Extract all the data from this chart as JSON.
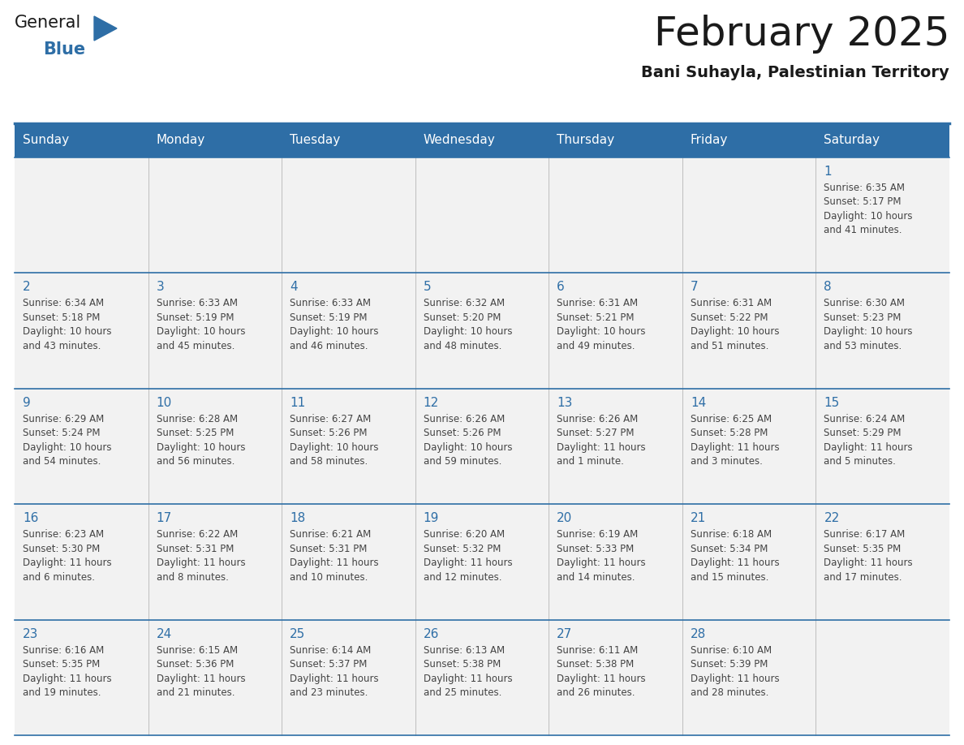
{
  "title": "February 2025",
  "subtitle": "Bani Suhayla, Palestinian Territory",
  "days_of_week": [
    "Sunday",
    "Monday",
    "Tuesday",
    "Wednesday",
    "Thursday",
    "Friday",
    "Saturday"
  ],
  "header_bg": "#2E6EA6",
  "header_text_color": "#FFFFFF",
  "cell_bg": "#F2F2F2",
  "line_color": "#2E6EA6",
  "title_color": "#1a1a1a",
  "day_num_color": "#2E6EA6",
  "info_text_color": "#444444",
  "logo_general_color": "#1a1a1a",
  "logo_blue_color": "#2E6EA6",
  "logo_triangle_color": "#2E6EA6",
  "calendar": [
    [
      null,
      null,
      null,
      null,
      null,
      null,
      {
        "day": 1,
        "sunrise": "6:35 AM",
        "sunset": "5:17 PM",
        "daylight": "10 hours and 41 minutes."
      }
    ],
    [
      {
        "day": 2,
        "sunrise": "6:34 AM",
        "sunset": "5:18 PM",
        "daylight": "10 hours and 43 minutes."
      },
      {
        "day": 3,
        "sunrise": "6:33 AM",
        "sunset": "5:19 PM",
        "daylight": "10 hours and 45 minutes."
      },
      {
        "day": 4,
        "sunrise": "6:33 AM",
        "sunset": "5:19 PM",
        "daylight": "10 hours and 46 minutes."
      },
      {
        "day": 5,
        "sunrise": "6:32 AM",
        "sunset": "5:20 PM",
        "daylight": "10 hours and 48 minutes."
      },
      {
        "day": 6,
        "sunrise": "6:31 AM",
        "sunset": "5:21 PM",
        "daylight": "10 hours and 49 minutes."
      },
      {
        "day": 7,
        "sunrise": "6:31 AM",
        "sunset": "5:22 PM",
        "daylight": "10 hours and 51 minutes."
      },
      {
        "day": 8,
        "sunrise": "6:30 AM",
        "sunset": "5:23 PM",
        "daylight": "10 hours and 53 minutes."
      }
    ],
    [
      {
        "day": 9,
        "sunrise": "6:29 AM",
        "sunset": "5:24 PM",
        "daylight": "10 hours and 54 minutes."
      },
      {
        "day": 10,
        "sunrise": "6:28 AM",
        "sunset": "5:25 PM",
        "daylight": "10 hours and 56 minutes."
      },
      {
        "day": 11,
        "sunrise": "6:27 AM",
        "sunset": "5:26 PM",
        "daylight": "10 hours and 58 minutes."
      },
      {
        "day": 12,
        "sunrise": "6:26 AM",
        "sunset": "5:26 PM",
        "daylight": "10 hours and 59 minutes."
      },
      {
        "day": 13,
        "sunrise": "6:26 AM",
        "sunset": "5:27 PM",
        "daylight": "11 hours and 1 minute."
      },
      {
        "day": 14,
        "sunrise": "6:25 AM",
        "sunset": "5:28 PM",
        "daylight": "11 hours and 3 minutes."
      },
      {
        "day": 15,
        "sunrise": "6:24 AM",
        "sunset": "5:29 PM",
        "daylight": "11 hours and 5 minutes."
      }
    ],
    [
      {
        "day": 16,
        "sunrise": "6:23 AM",
        "sunset": "5:30 PM",
        "daylight": "11 hours and 6 minutes."
      },
      {
        "day": 17,
        "sunrise": "6:22 AM",
        "sunset": "5:31 PM",
        "daylight": "11 hours and 8 minutes."
      },
      {
        "day": 18,
        "sunrise": "6:21 AM",
        "sunset": "5:31 PM",
        "daylight": "11 hours and 10 minutes."
      },
      {
        "day": 19,
        "sunrise": "6:20 AM",
        "sunset": "5:32 PM",
        "daylight": "11 hours and 12 minutes."
      },
      {
        "day": 20,
        "sunrise": "6:19 AM",
        "sunset": "5:33 PM",
        "daylight": "11 hours and 14 minutes."
      },
      {
        "day": 21,
        "sunrise": "6:18 AM",
        "sunset": "5:34 PM",
        "daylight": "11 hours and 15 minutes."
      },
      {
        "day": 22,
        "sunrise": "6:17 AM",
        "sunset": "5:35 PM",
        "daylight": "11 hours and 17 minutes."
      }
    ],
    [
      {
        "day": 23,
        "sunrise": "6:16 AM",
        "sunset": "5:35 PM",
        "daylight": "11 hours and 19 minutes."
      },
      {
        "day": 24,
        "sunrise": "6:15 AM",
        "sunset": "5:36 PM",
        "daylight": "11 hours and 21 minutes."
      },
      {
        "day": 25,
        "sunrise": "6:14 AM",
        "sunset": "5:37 PM",
        "daylight": "11 hours and 23 minutes."
      },
      {
        "day": 26,
        "sunrise": "6:13 AM",
        "sunset": "5:38 PM",
        "daylight": "11 hours and 25 minutes."
      },
      {
        "day": 27,
        "sunrise": "6:11 AM",
        "sunset": "5:38 PM",
        "daylight": "11 hours and 26 minutes."
      },
      {
        "day": 28,
        "sunrise": "6:10 AM",
        "sunset": "5:39 PM",
        "daylight": "11 hours and 28 minutes."
      },
      null
    ]
  ]
}
